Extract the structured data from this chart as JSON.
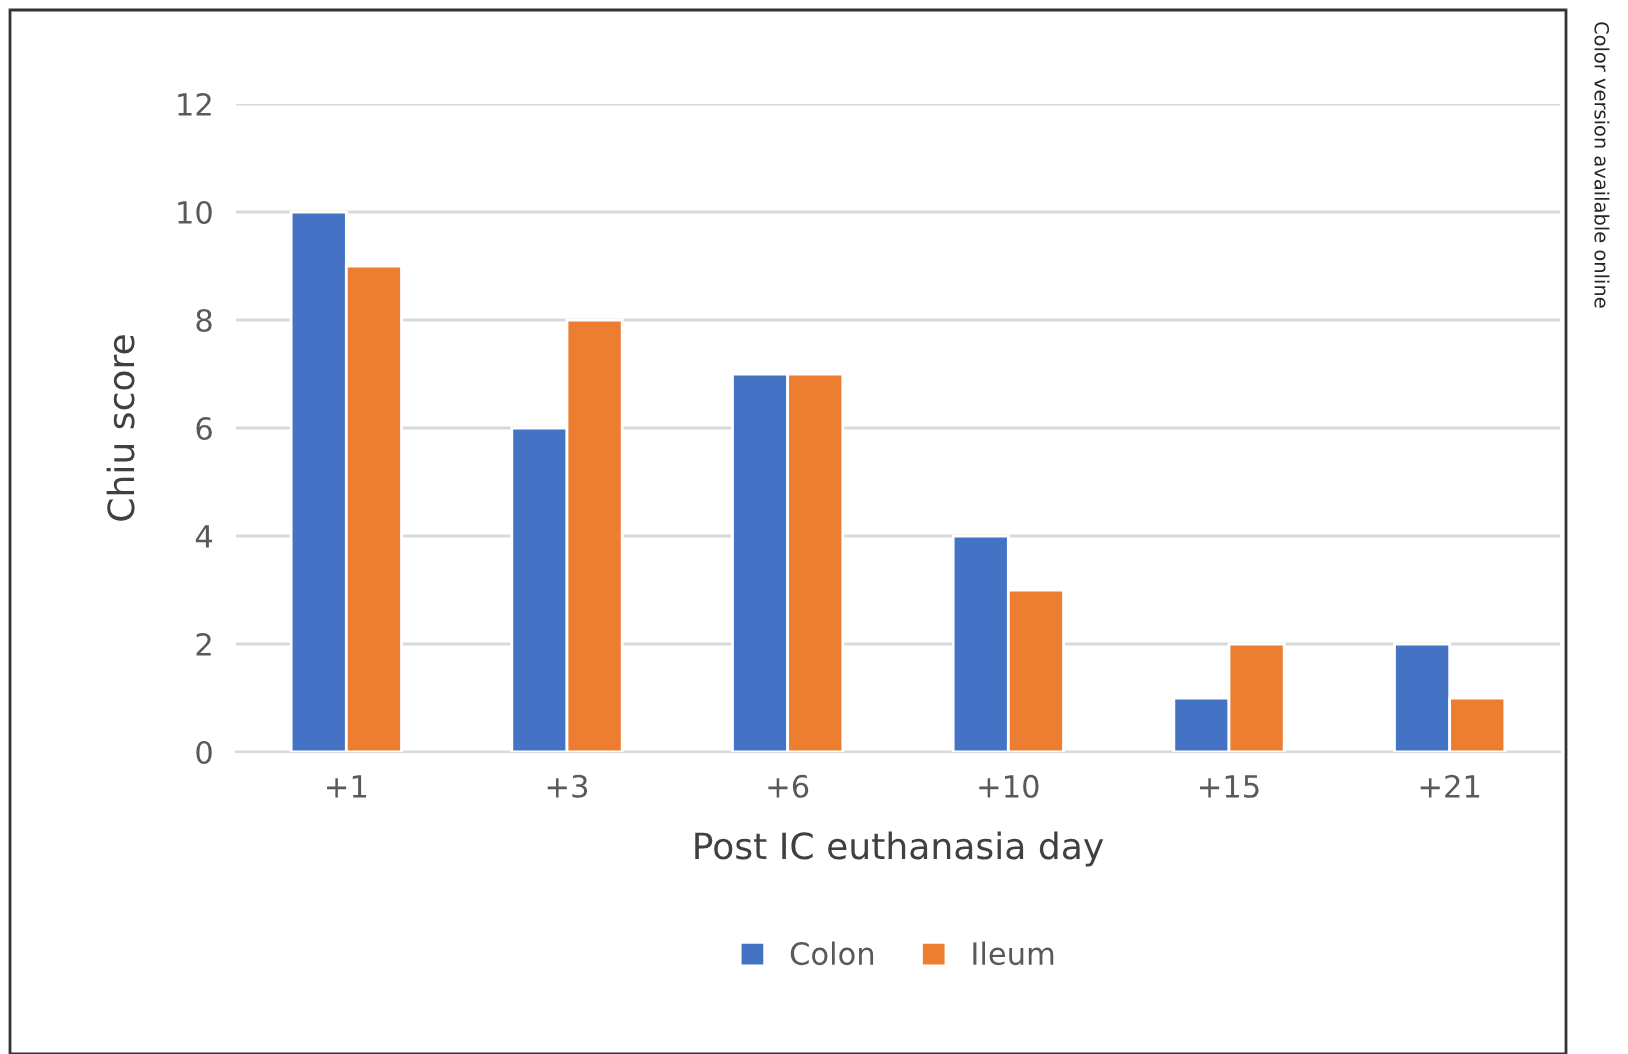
{
  "chart_data": {
    "type": "bar",
    "xlabel": "Post IC euthanasia day",
    "ylabel": "Chiu score",
    "categories": [
      "+1",
      "+3",
      "+6",
      "+10",
      "+15",
      "+21"
    ],
    "series": [
      {
        "name": "Colon",
        "color": "#4472c4",
        "values": [
          10,
          6,
          7,
          4,
          1,
          2
        ]
      },
      {
        "name": "Ileum",
        "color": "#ed7d31",
        "values": [
          9,
          8,
          7,
          3,
          2,
          1
        ]
      }
    ],
    "ylim": [
      0,
      12
    ],
    "yticks": [
      0,
      2,
      4,
      6,
      8,
      10,
      12
    ],
    "grid": "y",
    "legend": "bottom",
    "annotations": [
      "Color version available online"
    ]
  }
}
